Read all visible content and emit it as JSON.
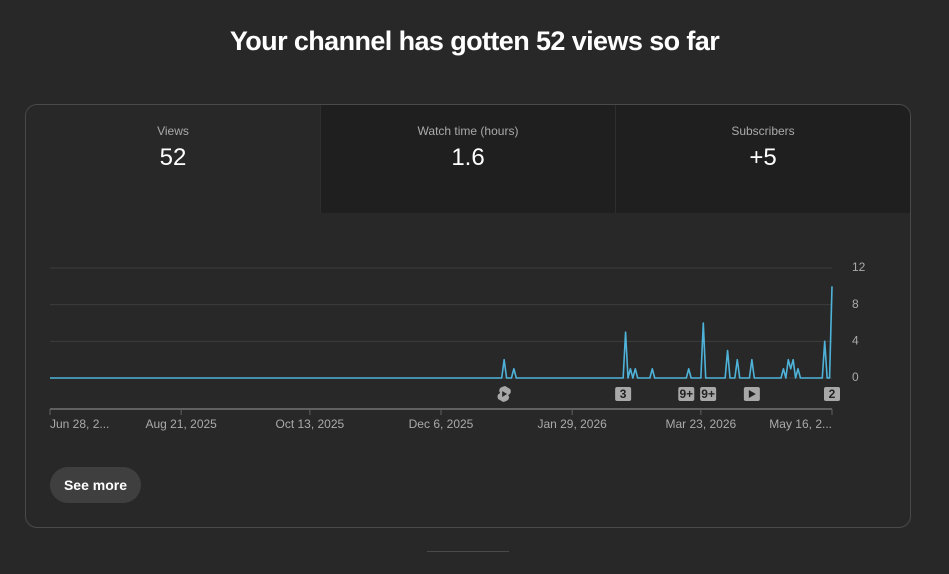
{
  "header": {
    "title": "Your channel has gotten 52 views so far"
  },
  "tabs": [
    {
      "label": "Views",
      "value": "52"
    },
    {
      "label": "Watch time (hours)",
      "value": "1.6"
    },
    {
      "label": "Subscribers",
      "value": "+5"
    }
  ],
  "chart_data": {
    "type": "line",
    "color": "#4fb3d9",
    "grid": true,
    "x": [
      "2025-06-28",
      "2025-12-31",
      "2026-01-01",
      "2026-01-02",
      "2026-01-04",
      "2026-01-05",
      "2026-01-06",
      "2026-02-19",
      "2026-02-20",
      "2026-02-21",
      "2026-02-22",
      "2026-02-23",
      "2026-02-24",
      "2026-02-25",
      "2026-03-02",
      "2026-03-03",
      "2026-03-04",
      "2026-03-17",
      "2026-03-18",
      "2026-03-19",
      "2026-03-23",
      "2026-03-24",
      "2026-03-25",
      "2026-04-02",
      "2026-04-03",
      "2026-04-04",
      "2026-04-06",
      "2026-04-07",
      "2026-04-08",
      "2026-04-12",
      "2026-04-13",
      "2026-04-14",
      "2026-04-25",
      "2026-04-26",
      "2026-04-27",
      "2026-04-28",
      "2026-04-29",
      "2026-04-30",
      "2026-05-01",
      "2026-05-02",
      "2026-05-03",
      "2026-05-12",
      "2026-05-13",
      "2026-05-14",
      "2026-05-15",
      "2026-05-16"
    ],
    "values": [
      0,
      0,
      2,
      0,
      0,
      1,
      0,
      0,
      5,
      0,
      1,
      0,
      1,
      0,
      0,
      1,
      0,
      0,
      1,
      0,
      0,
      6,
      0,
      0,
      3,
      0,
      0,
      2,
      0,
      0,
      2,
      0,
      0,
      1,
      0,
      2,
      1,
      2,
      0,
      1,
      0,
      0,
      4,
      0,
      0,
      10
    ],
    "xlim": [
      "2025-06-28",
      "2026-05-16"
    ],
    "xticks": [
      {
        "value": "2025-06-28",
        "label": "Jun 28, 2..."
      },
      {
        "value": "2025-08-21",
        "label": "Aug 21, 2025"
      },
      {
        "value": "2025-10-13",
        "label": "Oct 13, 2025"
      },
      {
        "value": "2025-12-06",
        "label": "Dec 6, 2025"
      },
      {
        "value": "2026-01-29",
        "label": "Jan 29, 2026"
      },
      {
        "value": "2026-03-23",
        "label": "Mar 23, 2026"
      },
      {
        "value": "2026-05-16",
        "label": "May 16, 2..."
      }
    ],
    "ylim": [
      0,
      12
    ],
    "yticks": [
      0,
      4,
      8,
      12
    ],
    "video_markers": [
      {
        "date": "2026-01-01",
        "icon": "shorts"
      },
      {
        "date": "2026-02-19",
        "label": "3"
      },
      {
        "date": "2026-03-17",
        "label": "9+"
      },
      {
        "date": "2026-03-26",
        "label": "9+"
      },
      {
        "date": "2026-04-13",
        "icon": "play"
      },
      {
        "date": "2026-05-16",
        "label": "2"
      }
    ]
  },
  "button": {
    "label": "See more"
  }
}
